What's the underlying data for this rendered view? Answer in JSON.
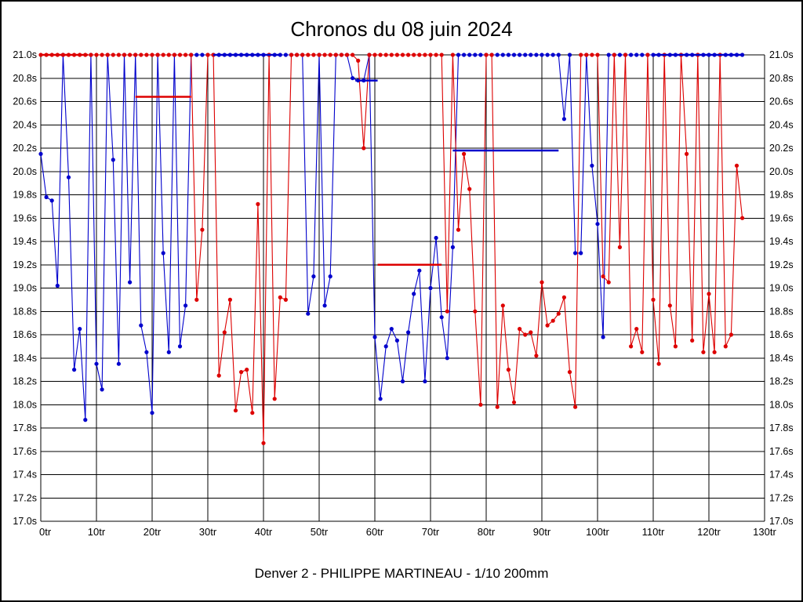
{
  "chart_data": {
    "type": "line",
    "title": "Chronos du 08 juin 2024",
    "caption": "Denver 2 - PHILIPPE MARTINEAU - 1/10 200mm",
    "x_unit": "tr",
    "y_unit": "s",
    "xlim": [
      0,
      130
    ],
    "ylim": [
      17.0,
      21.0
    ],
    "x_tick_step": 10,
    "y_tick_step": 0.2,
    "grid": true,
    "legend": "none",
    "x_tick_labels": [
      "0tr",
      "10tr",
      "20tr",
      "30tr",
      "40tr",
      "50tr",
      "60tr",
      "70tr",
      "80tr",
      "90tr",
      "100tr",
      "110tr",
      "120tr",
      "130tr"
    ],
    "y_tick_labels_top_to_bottom": [
      "21.0s",
      "20.8s",
      "20.6s",
      "20.4s",
      "20.2s",
      "20.0s",
      "19.8s",
      "19.6s",
      "19.4s",
      "19.2s",
      "19.0s",
      "18.8s",
      "18.6s",
      "18.4s",
      "18.2s",
      "18.0s",
      "17.8s",
      "17.6s",
      "17.4s",
      "17.2s",
      "17.0s"
    ],
    "colors": {
      "blue": "#0000cc",
      "red": "#dd0000",
      "grid": "#000000",
      "text": "#000000"
    },
    "series": [
      {
        "name": "driver-blue",
        "color": "#0000cc",
        "points": [
          [
            0,
            20.15
          ],
          [
            1,
            19.78
          ],
          [
            2,
            19.75
          ],
          [
            3,
            19.02
          ],
          [
            4,
            21
          ],
          [
            5,
            19.95
          ],
          [
            6,
            18.3
          ],
          [
            7,
            18.65
          ],
          [
            8,
            17.87
          ],
          [
            9,
            21
          ],
          [
            10,
            18.35
          ],
          [
            11,
            18.13
          ],
          [
            12,
            21
          ],
          [
            13,
            20.1
          ],
          [
            14,
            18.35
          ],
          [
            15,
            21
          ],
          [
            16,
            19.05
          ],
          [
            17,
            21
          ],
          [
            18,
            18.68
          ],
          [
            19,
            18.45
          ],
          [
            20,
            17.93
          ],
          [
            21,
            21
          ],
          [
            22,
            19.3
          ],
          [
            23,
            18.45
          ],
          [
            24,
            21
          ],
          [
            25,
            18.5
          ],
          [
            26,
            18.85
          ],
          [
            27,
            21
          ],
          [
            28,
            21
          ],
          [
            29,
            21
          ],
          [
            30,
            21
          ],
          [
            31,
            21
          ],
          [
            32,
            21
          ],
          [
            33,
            21
          ],
          [
            34,
            21
          ],
          [
            35,
            21
          ],
          [
            36,
            21
          ],
          [
            37,
            21
          ],
          [
            38,
            21
          ],
          [
            39,
            21
          ],
          [
            40,
            21
          ],
          [
            41,
            21
          ],
          [
            42,
            21
          ],
          [
            43,
            21
          ],
          [
            44,
            21
          ],
          [
            45,
            21
          ],
          [
            46,
            21
          ],
          [
            47,
            21
          ],
          [
            48,
            18.78
          ],
          [
            49,
            19.1
          ],
          [
            50,
            21
          ],
          [
            51,
            18.85
          ],
          [
            52,
            19.1
          ],
          [
            53,
            21
          ],
          [
            54,
            21
          ],
          [
            55,
            21
          ],
          [
            56,
            20.8
          ],
          [
            57,
            20.78
          ],
          [
            58,
            20.78
          ],
          [
            59,
            21
          ],
          [
            60,
            18.58
          ],
          [
            61,
            18.05
          ],
          [
            62,
            18.5
          ],
          [
            63,
            18.65
          ],
          [
            64,
            18.55
          ],
          [
            65,
            18.2
          ],
          [
            66,
            18.62
          ],
          [
            67,
            18.95
          ],
          [
            68,
            19.15
          ],
          [
            69,
            18.2
          ],
          [
            70,
            19.0
          ],
          [
            71,
            19.43
          ],
          [
            72,
            18.75
          ],
          [
            73,
            18.4
          ],
          [
            74,
            19.35
          ],
          [
            75,
            21
          ],
          [
            76,
            21
          ],
          [
            77,
            21
          ],
          [
            78,
            21
          ],
          [
            79,
            21
          ],
          [
            80,
            21
          ],
          [
            81,
            21
          ],
          [
            82,
            21
          ],
          [
            83,
            21
          ],
          [
            84,
            21
          ],
          [
            85,
            21
          ],
          [
            86,
            21
          ],
          [
            87,
            21
          ],
          [
            88,
            21
          ],
          [
            89,
            21
          ],
          [
            90,
            21
          ],
          [
            91,
            21
          ],
          [
            92,
            21
          ],
          [
            93,
            21
          ],
          [
            94,
            20.45
          ],
          [
            95,
            21
          ],
          [
            96,
            19.3
          ],
          [
            97,
            19.3
          ],
          [
            98,
            21
          ],
          [
            99,
            20.05
          ],
          [
            100,
            19.55
          ],
          [
            101,
            18.58
          ],
          [
            102,
            21
          ],
          [
            103,
            21
          ],
          [
            104,
            21
          ],
          [
            105,
            21
          ],
          [
            106,
            21
          ],
          [
            107,
            21
          ],
          [
            108,
            21
          ],
          [
            109,
            21
          ],
          [
            110,
            21
          ],
          [
            111,
            21
          ],
          [
            112,
            21
          ],
          [
            113,
            21
          ],
          [
            114,
            21
          ],
          [
            115,
            21
          ],
          [
            116,
            21
          ],
          [
            117,
            21
          ],
          [
            118,
            21
          ],
          [
            119,
            21
          ],
          [
            120,
            21
          ],
          [
            121,
            21
          ],
          [
            122,
            21
          ],
          [
            123,
            21
          ],
          [
            124,
            21
          ],
          [
            125,
            21
          ],
          [
            126,
            21
          ]
        ]
      },
      {
        "name": "driver-red",
        "color": "#dd0000",
        "points": [
          [
            0,
            21
          ],
          [
            1,
            21
          ],
          [
            2,
            21
          ],
          [
            3,
            21
          ],
          [
            4,
            21
          ],
          [
            5,
            21
          ],
          [
            6,
            21
          ],
          [
            7,
            21
          ],
          [
            8,
            21
          ],
          [
            9,
            21
          ],
          [
            10,
            21
          ],
          [
            11,
            21
          ],
          [
            12,
            21
          ],
          [
            13,
            21
          ],
          [
            14,
            21
          ],
          [
            15,
            21
          ],
          [
            16,
            21
          ],
          [
            17,
            21
          ],
          [
            18,
            21
          ],
          [
            19,
            21
          ],
          [
            20,
            21
          ],
          [
            21,
            21
          ],
          [
            22,
            21
          ],
          [
            23,
            21
          ],
          [
            24,
            21
          ],
          [
            25,
            21
          ],
          [
            26,
            21
          ],
          [
            27,
            21
          ],
          [
            28,
            18.9
          ],
          [
            29,
            19.5
          ],
          [
            30,
            21
          ],
          [
            31,
            21
          ],
          [
            32,
            18.25
          ],
          [
            33,
            18.62
          ],
          [
            34,
            18.9
          ],
          [
            35,
            17.95
          ],
          [
            36,
            18.28
          ],
          [
            37,
            18.3
          ],
          [
            38,
            17.93
          ],
          [
            39,
            19.72
          ],
          [
            40,
            17.67
          ],
          [
            41,
            21
          ],
          [
            42,
            18.05
          ],
          [
            43,
            18.92
          ],
          [
            44,
            18.9
          ],
          [
            45,
            21
          ],
          [
            46,
            21
          ],
          [
            47,
            21
          ],
          [
            48,
            21
          ],
          [
            49,
            21
          ],
          [
            50,
            21
          ],
          [
            51,
            21
          ],
          [
            52,
            21
          ],
          [
            53,
            21
          ],
          [
            54,
            21
          ],
          [
            55,
            21
          ],
          [
            56,
            21
          ],
          [
            57,
            20.95
          ],
          [
            58,
            20.2
          ],
          [
            59,
            21
          ],
          [
            60,
            21
          ],
          [
            61,
            21
          ],
          [
            62,
            21
          ],
          [
            63,
            21
          ],
          [
            64,
            21
          ],
          [
            65,
            21
          ],
          [
            66,
            21
          ],
          [
            67,
            21
          ],
          [
            68,
            21
          ],
          [
            69,
            21
          ],
          [
            70,
            21
          ],
          [
            71,
            21
          ],
          [
            72,
            21
          ],
          [
            73,
            18.8
          ],
          [
            74,
            21
          ],
          [
            75,
            19.5
          ],
          [
            76,
            20.15
          ],
          [
            77,
            19.85
          ],
          [
            78,
            18.8
          ],
          [
            79,
            18.0
          ],
          [
            80,
            21
          ],
          [
            81,
            21
          ],
          [
            82,
            17.98
          ],
          [
            83,
            18.85
          ],
          [
            84,
            18.3
          ],
          [
            85,
            18.02
          ],
          [
            86,
            18.65
          ],
          [
            87,
            18.6
          ],
          [
            88,
            18.62
          ],
          [
            89,
            18.42
          ],
          [
            90,
            19.05
          ],
          [
            91,
            18.68
          ],
          [
            92,
            18.72
          ],
          [
            93,
            18.78
          ],
          [
            94,
            18.92
          ],
          [
            95,
            18.28
          ],
          [
            96,
            17.98
          ],
          [
            97,
            21
          ],
          [
            98,
            21
          ],
          [
            99,
            21
          ],
          [
            100,
            21
          ],
          [
            101,
            19.1
          ],
          [
            102,
            19.05
          ],
          [
            103,
            21
          ],
          [
            104,
            19.35
          ],
          [
            105,
            21
          ],
          [
            106,
            18.5
          ],
          [
            107,
            18.65
          ],
          [
            108,
            18.45
          ],
          [
            109,
            21
          ],
          [
            110,
            18.9
          ],
          [
            111,
            18.35
          ],
          [
            112,
            21
          ],
          [
            113,
            18.85
          ],
          [
            114,
            18.5
          ],
          [
            115,
            21
          ],
          [
            116,
            20.15
          ],
          [
            117,
            18.55
          ],
          [
            118,
            21
          ],
          [
            119,
            18.45
          ],
          [
            120,
            18.95
          ],
          [
            121,
            18.45
          ],
          [
            122,
            21
          ],
          [
            123,
            18.5
          ],
          [
            124,
            18.6
          ],
          [
            125,
            20.05
          ],
          [
            126,
            19.6
          ]
        ]
      }
    ],
    "marker_segments": [
      {
        "name": "red-flat-start",
        "color": "#dd0000",
        "y": 21.0,
        "x1": 0,
        "x2": 8.5
      },
      {
        "name": "red-average-1",
        "color": "#dd0000",
        "y": 20.64,
        "x1": 17,
        "x2": 27
      },
      {
        "name": "blue-average-1",
        "color": "#0000cc",
        "y": 20.78,
        "x1": 56.5,
        "x2": 60.5
      },
      {
        "name": "red-average-2",
        "color": "#dd0000",
        "y": 19.2,
        "x1": 60.5,
        "x2": 72
      },
      {
        "name": "blue-average-2",
        "color": "#0000cc",
        "y": 20.18,
        "x1": 74,
        "x2": 93
      },
      {
        "name": "blue-flat-mid",
        "color": "#0000cc",
        "y": 21.0,
        "x1": 31,
        "x2": 43
      },
      {
        "name": "blue-flat-end",
        "color": "#0000cc",
        "y": 21.0,
        "x1": 110,
        "x2": 126
      }
    ]
  }
}
